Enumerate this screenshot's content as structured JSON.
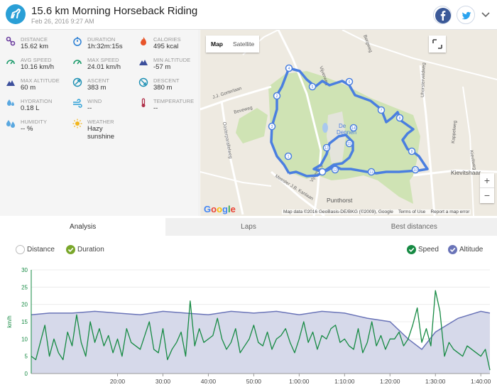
{
  "header": {
    "title": "15.6 km Morning Horseback Riding",
    "date": "Feb 26, 2016 9:27 AM"
  },
  "stats": [
    {
      "id": "distance",
      "label": "DISTANCE",
      "value": "15.62 km",
      "icon": "route-icon",
      "color": "#6c3fa0"
    },
    {
      "id": "duration",
      "label": "DURATION",
      "value": "1h:32m:15s",
      "icon": "stopwatch-icon",
      "color": "#2a7fd4"
    },
    {
      "id": "calories",
      "label": "CALORIES",
      "value": "495 kcal",
      "icon": "flame-icon",
      "color": "#e8542a"
    },
    {
      "id": "avg-speed",
      "label": "AVG SPEED",
      "value": "10.16 km/h",
      "icon": "speedometer-icon",
      "color": "#1a9a6a"
    },
    {
      "id": "max-speed",
      "label": "MAX SPEED",
      "value": "24.01 km/h",
      "icon": "speedometer-icon",
      "color": "#1a9a6a"
    },
    {
      "id": "min-altitude",
      "label": "MIN ALTITUDE",
      "value": "-57 m",
      "icon": "mountain-icon",
      "color": "#3c4f9c"
    },
    {
      "id": "max-altitude",
      "label": "MAX ALTITUDE",
      "value": "60 m",
      "icon": "mountain-icon",
      "color": "#3c4f9c"
    },
    {
      "id": "ascent",
      "label": "ASCENT",
      "value": "383 m",
      "icon": "ascent-icon",
      "color": "#1b8fb3"
    },
    {
      "id": "descent",
      "label": "DESCENT",
      "value": "380 m",
      "icon": "descent-icon",
      "color": "#1b8fb3"
    },
    {
      "id": "hydration",
      "label": "HYDRATION",
      "value": "0.18 L",
      "icon": "drops-icon",
      "color": "#5aa8e0"
    },
    {
      "id": "wind",
      "label": "WIND",
      "value": "--",
      "icon": "wind-icon",
      "color": "#2a9fd6"
    },
    {
      "id": "temperature",
      "label": "TEMPERATURE",
      "value": "--",
      "icon": "thermometer-icon",
      "color": "#b0314a"
    },
    {
      "id": "humidity",
      "label": "HUMIDITY",
      "value": "-- %",
      "icon": "humidity-icon",
      "color": "#5aa8e0"
    },
    {
      "id": "weather",
      "label": "WEATHER",
      "value": "Hazy sunshine",
      "icon": "sun-icon",
      "color": "#f2b51a"
    }
  ],
  "map": {
    "toggle": [
      "Map",
      "Satellite"
    ],
    "active_toggle": "Map",
    "places": {
      "punthorst": "Punthorst",
      "kievitshaar": "Kievitshaar",
      "de_dennen_1": "De",
      "de_dennen_2": "Dennen"
    },
    "streets": [
      "J.J. Gorterlaan",
      "Oosterparallelweg",
      "Boveweg",
      "Vijverweg",
      "Meester J.B. Kanlaan",
      "Uhorsterveldweg",
      "Kappelweg",
      "Kievitweg",
      "Bergweg",
      "Vijverweg"
    ],
    "waypoints": [
      "1",
      "2",
      "3",
      "4",
      "5",
      "6",
      "7",
      "8",
      "9",
      "10",
      "11",
      "12",
      "13",
      "14",
      "15"
    ],
    "zoom_in": "+",
    "zoom_out": "−",
    "google": "Google",
    "attribution": "Map data ©2016 GeoBasis-DE/BKG (©2009), Google",
    "terms": "Terms of Use",
    "report": "Report a map error",
    "colors": {
      "route": "#4a7fe0",
      "forest": "#cfe3b4",
      "road": "#ffffff"
    }
  },
  "tabs": [
    {
      "label": "Analysis",
      "active": true
    },
    {
      "label": "Laps",
      "active": false
    },
    {
      "label": "Best distances",
      "active": false
    }
  ],
  "legend": {
    "distance": "Distance",
    "duration": "Duration",
    "speed": "Speed",
    "altitude": "Altitude"
  },
  "chart_data": {
    "type": "line",
    "ylabel": "km/h",
    "ylim": [
      0,
      30
    ],
    "yticks": [
      "0",
      "5",
      "10",
      "15",
      "20",
      "25",
      "30"
    ],
    "xlim": [
      1,
      102
    ],
    "xticks": [
      {
        "at": 20,
        "label": "20:00"
      },
      {
        "at": 30,
        "label": "30:00"
      },
      {
        "at": 40,
        "label": "40:00"
      },
      {
        "at": 50,
        "label": "50:00"
      },
      {
        "at": 60,
        "label": "1:00:00"
      },
      {
        "at": 70,
        "label": "1:10:00"
      },
      {
        "at": 80,
        "label": "1:20:00"
      },
      {
        "at": 90,
        "label": "1:30:00"
      },
      {
        "at": 100,
        "label": "1:40:00"
      }
    ],
    "series": [
      {
        "name": "Speed",
        "color": "#168a43",
        "x": [
          1,
          2,
          3,
          4,
          5,
          6,
          7,
          8,
          9,
          10,
          11,
          12,
          13,
          14,
          15,
          16,
          17,
          18,
          19,
          20,
          21,
          22,
          23,
          24,
          25,
          26,
          27,
          28,
          29,
          30,
          31,
          32,
          33,
          34,
          35,
          36,
          37,
          38,
          39,
          40,
          41,
          42,
          43,
          44,
          45,
          46,
          47,
          48,
          49,
          50,
          51,
          52,
          53,
          54,
          55,
          56,
          57,
          58,
          59,
          60,
          61,
          62,
          63,
          64,
          65,
          66,
          67,
          68,
          69,
          70,
          71,
          72,
          73,
          74,
          75,
          76,
          77,
          78,
          79,
          80,
          81,
          82,
          83,
          84,
          85,
          86,
          87,
          88,
          89,
          90,
          91,
          92,
          93,
          94,
          95,
          96,
          97,
          98,
          99,
          100,
          101,
          102
        ],
        "values": [
          5,
          4,
          9,
          14,
          5,
          10,
          6,
          4,
          12,
          8,
          17,
          9,
          5,
          15,
          9,
          13,
          8,
          11,
          6,
          10,
          5,
          13,
          9,
          8,
          7,
          11,
          15,
          7,
          6,
          13,
          4,
          7,
          9,
          12,
          5,
          21,
          8,
          13,
          9,
          10,
          11,
          16,
          10,
          7,
          9,
          13,
          6,
          8,
          10,
          14,
          9,
          8,
          12,
          7,
          10,
          11,
          13,
          9,
          6,
          10,
          15,
          9,
          12,
          7,
          11,
          10,
          13,
          14,
          9,
          10,
          8,
          7,
          13,
          6,
          9,
          15,
          8,
          11,
          7,
          10,
          10,
          12,
          8,
          10,
          14,
          19,
          9,
          13,
          8,
          24,
          18,
          5,
          9,
          7,
          6,
          5,
          8,
          7,
          6,
          5,
          7,
          1
        ]
      },
      {
        "name": "Altitude",
        "color": "#6a74b8",
        "x": [
          1,
          5,
          10,
          15,
          20,
          25,
          30,
          35,
          40,
          45,
          50,
          55,
          60,
          65,
          70,
          75,
          80,
          84,
          87,
          90,
          95,
          100,
          102
        ],
        "values": [
          17,
          17.5,
          17.5,
          18,
          17.5,
          17,
          18,
          17.5,
          17,
          18,
          17.5,
          18,
          17,
          18,
          17.5,
          16,
          15,
          10,
          7,
          12,
          16,
          18,
          17.5
        ]
      }
    ],
    "legend_position": "top-right",
    "grid": true
  }
}
